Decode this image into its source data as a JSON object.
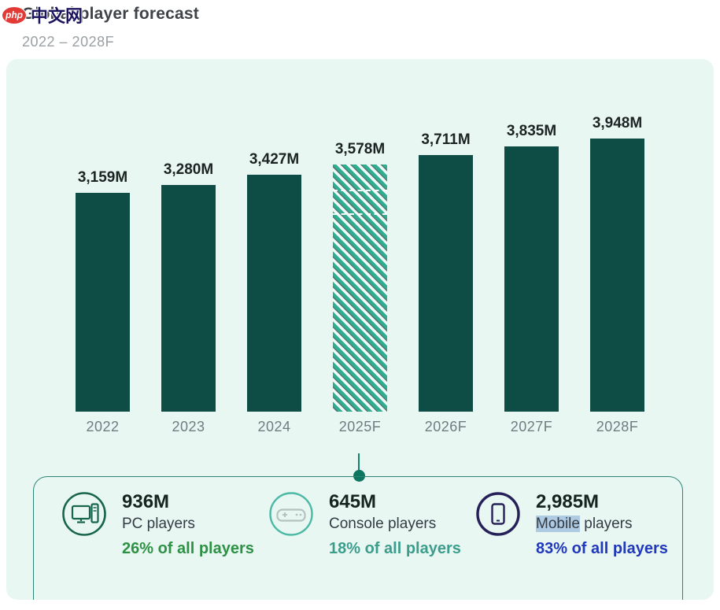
{
  "watermark": {
    "badge": "php",
    "text": "中文网"
  },
  "header": {
    "title": "Global player forecast",
    "subtitle": "2022 – 2028F"
  },
  "chart_data": {
    "type": "bar",
    "title": "Global player forecast",
    "subtitle": "2022 – 2028F",
    "categories": [
      "2022",
      "2023",
      "2024",
      "2025F",
      "2026F",
      "2027F",
      "2028F"
    ],
    "values": [
      3159,
      3280,
      3427,
      3578,
      3711,
      3835,
      3948
    ],
    "value_labels": [
      "3,159M",
      "3,280M",
      "3,427M",
      "3,578M",
      "3,711M",
      "3,835M",
      "3,948M"
    ],
    "unit": "M (millions of players)",
    "ylim": [
      0,
      3948
    ],
    "grid": false,
    "legend": "none",
    "bar_color": "#0e4c46",
    "hatched_category": "2025F",
    "hatch_color": "#2fae92",
    "forecast_categories": [
      "2025F",
      "2026F",
      "2027F",
      "2028F"
    ]
  },
  "callout": {
    "connected_category": "2025F",
    "stats": [
      {
        "id": "pc",
        "icon": "desktop-pc-icon",
        "value": "936M",
        "label": "PC players",
        "share": "26% of all players",
        "accent": "#2d9145"
      },
      {
        "id": "console",
        "icon": "gamepad-icon",
        "value": "645M",
        "label": "Console players",
        "share": "18% of all players",
        "accent": "#3d9d8c"
      },
      {
        "id": "mobile",
        "icon": "smartphone-icon",
        "value": "2,985M",
        "label_highlight": "Mobile",
        "label_rest": " players",
        "share": "83% of all players",
        "accent": "#2038bb"
      }
    ]
  }
}
